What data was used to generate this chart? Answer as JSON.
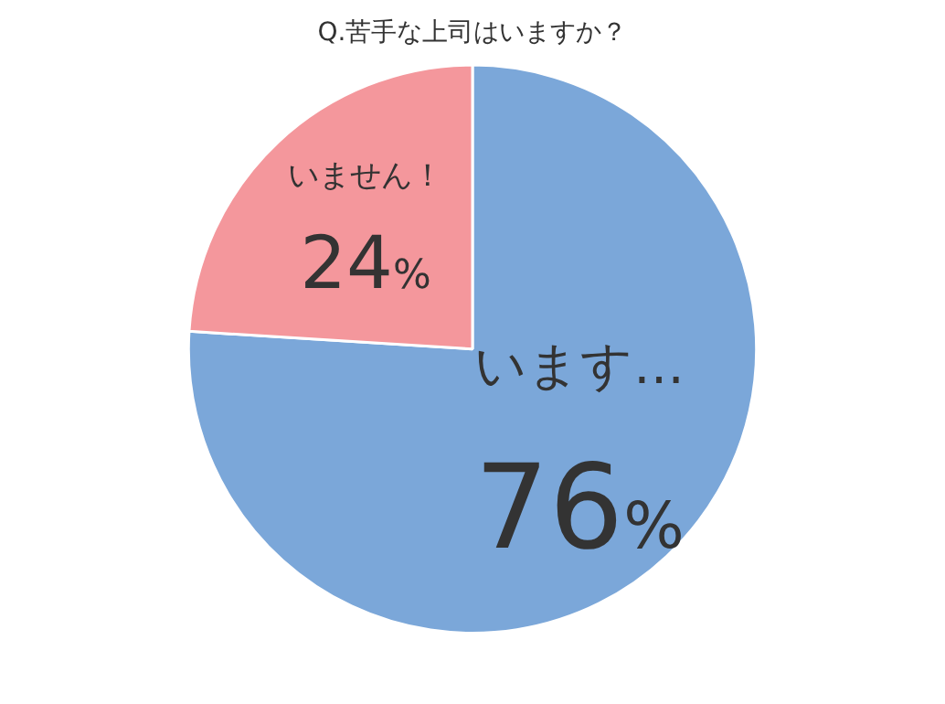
{
  "chart_data": {
    "type": "pie",
    "title": "Q.苦手な上司はいますか？",
    "categories": [
      "います…",
      "いません！"
    ],
    "values": [
      76,
      24
    ],
    "colors": [
      "#7ba7d9",
      "#f4979c"
    ],
    "value_labels": [
      "76%",
      "24%"
    ],
    "legend": false
  }
}
